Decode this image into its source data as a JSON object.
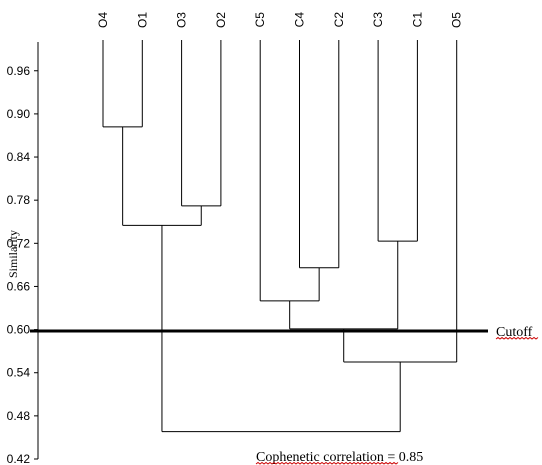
{
  "chart_data": {
    "type": "dendrogram",
    "ylabel": "Similarity",
    "ylim": [
      0.42,
      1.0
    ],
    "yticks": [
      "0.96",
      "0.90",
      "0.84",
      "0.78",
      "0.72",
      "0.66",
      "0.60",
      "0.54",
      "0.48",
      "0.42"
    ],
    "leaves": [
      "O4",
      "O1",
      "O3",
      "O2",
      "C5",
      "C4",
      "C2",
      "C3",
      "C1",
      "O5"
    ],
    "merges": [
      {
        "id": "m1",
        "left": "O4",
        "right": "O1",
        "similarity": 0.882
      },
      {
        "id": "m2",
        "left": "O3",
        "right": "O2",
        "similarity": 0.772
      },
      {
        "id": "m3",
        "left": "m1",
        "right": "m2",
        "similarity": 0.745
      },
      {
        "id": "m4",
        "left": "C4",
        "right": "C2",
        "similarity": 0.686
      },
      {
        "id": "m5",
        "left": "C3",
        "right": "C1",
        "similarity": 0.723
      },
      {
        "id": "m6",
        "left": "C5",
        "right": "m4",
        "similarity": 0.64
      },
      {
        "id": "m7",
        "left": "m6",
        "right": "m5",
        "similarity": 0.601
      },
      {
        "id": "m8",
        "left": "m7",
        "right": "O5",
        "similarity": 0.555
      },
      {
        "id": "m9",
        "left": "m3",
        "right": "m8",
        "similarity": 0.458
      }
    ],
    "cutoff": {
      "value": 0.598,
      "label": "Cutoff"
    },
    "annotation": "Cophenetic correlation = 0.85",
    "grid": false
  }
}
